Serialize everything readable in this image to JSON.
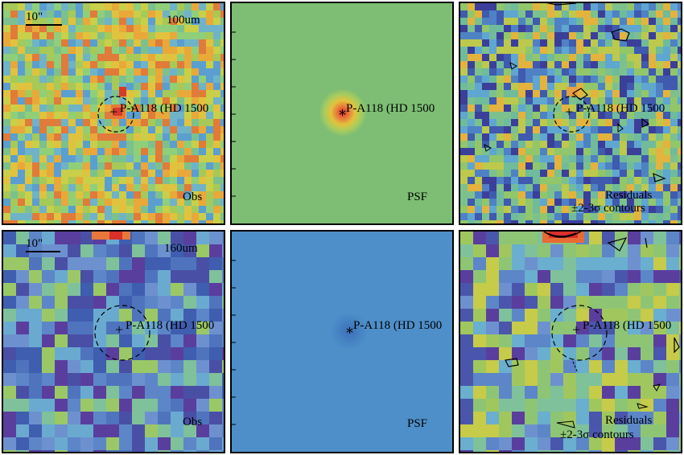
{
  "panels": [
    {
      "id": "obs-100",
      "band": "100um",
      "label": "Obs",
      "source": "P-A118 (HD 1500",
      "scale": "10\"",
      "palette": "mid",
      "source_style": "peak"
    },
    {
      "id": "psf-100",
      "band": "",
      "label": "PSF",
      "source": "P-A118 (HD 1500",
      "scale": "",
      "palette": "psf100",
      "source_style": "psf"
    },
    {
      "id": "res-100",
      "band": "",
      "label": "Residuals",
      "source": "P-A118 (HD 1500",
      "scale": "",
      "palette": "res",
      "source_style": "none"
    },
    {
      "id": "obs-160",
      "band": "160um",
      "label": "Obs",
      "source": "P-A118 (HD 1500",
      "scale": "10\"",
      "palette": "low",
      "source_style": "none"
    },
    {
      "id": "psf-160",
      "band": "",
      "label": "PSF",
      "source": "P-A118 (HD 1500",
      "scale": "",
      "palette": "psf160",
      "source_style": "psf"
    },
    {
      "id": "res-160",
      "band": "",
      "label": "Residuals",
      "source": "P-A118 (HD 1500",
      "scale": "",
      "palette": "res",
      "source_style": "none"
    }
  ],
  "contour_label": "±2-3σ contours",
  "psf_axis_ticks_top": [
    "2",
    "1",
    "1",
    "",
    "",
    "1"
  ],
  "psf_axis_ticks_bottom": [
    "2",
    "1",
    "1",
    "",
    "",
    "1"
  ],
  "colors": {
    "border": "#000000",
    "psf100_bg": "#7dbd74",
    "psf160_bg": "#4e8fc9"
  }
}
